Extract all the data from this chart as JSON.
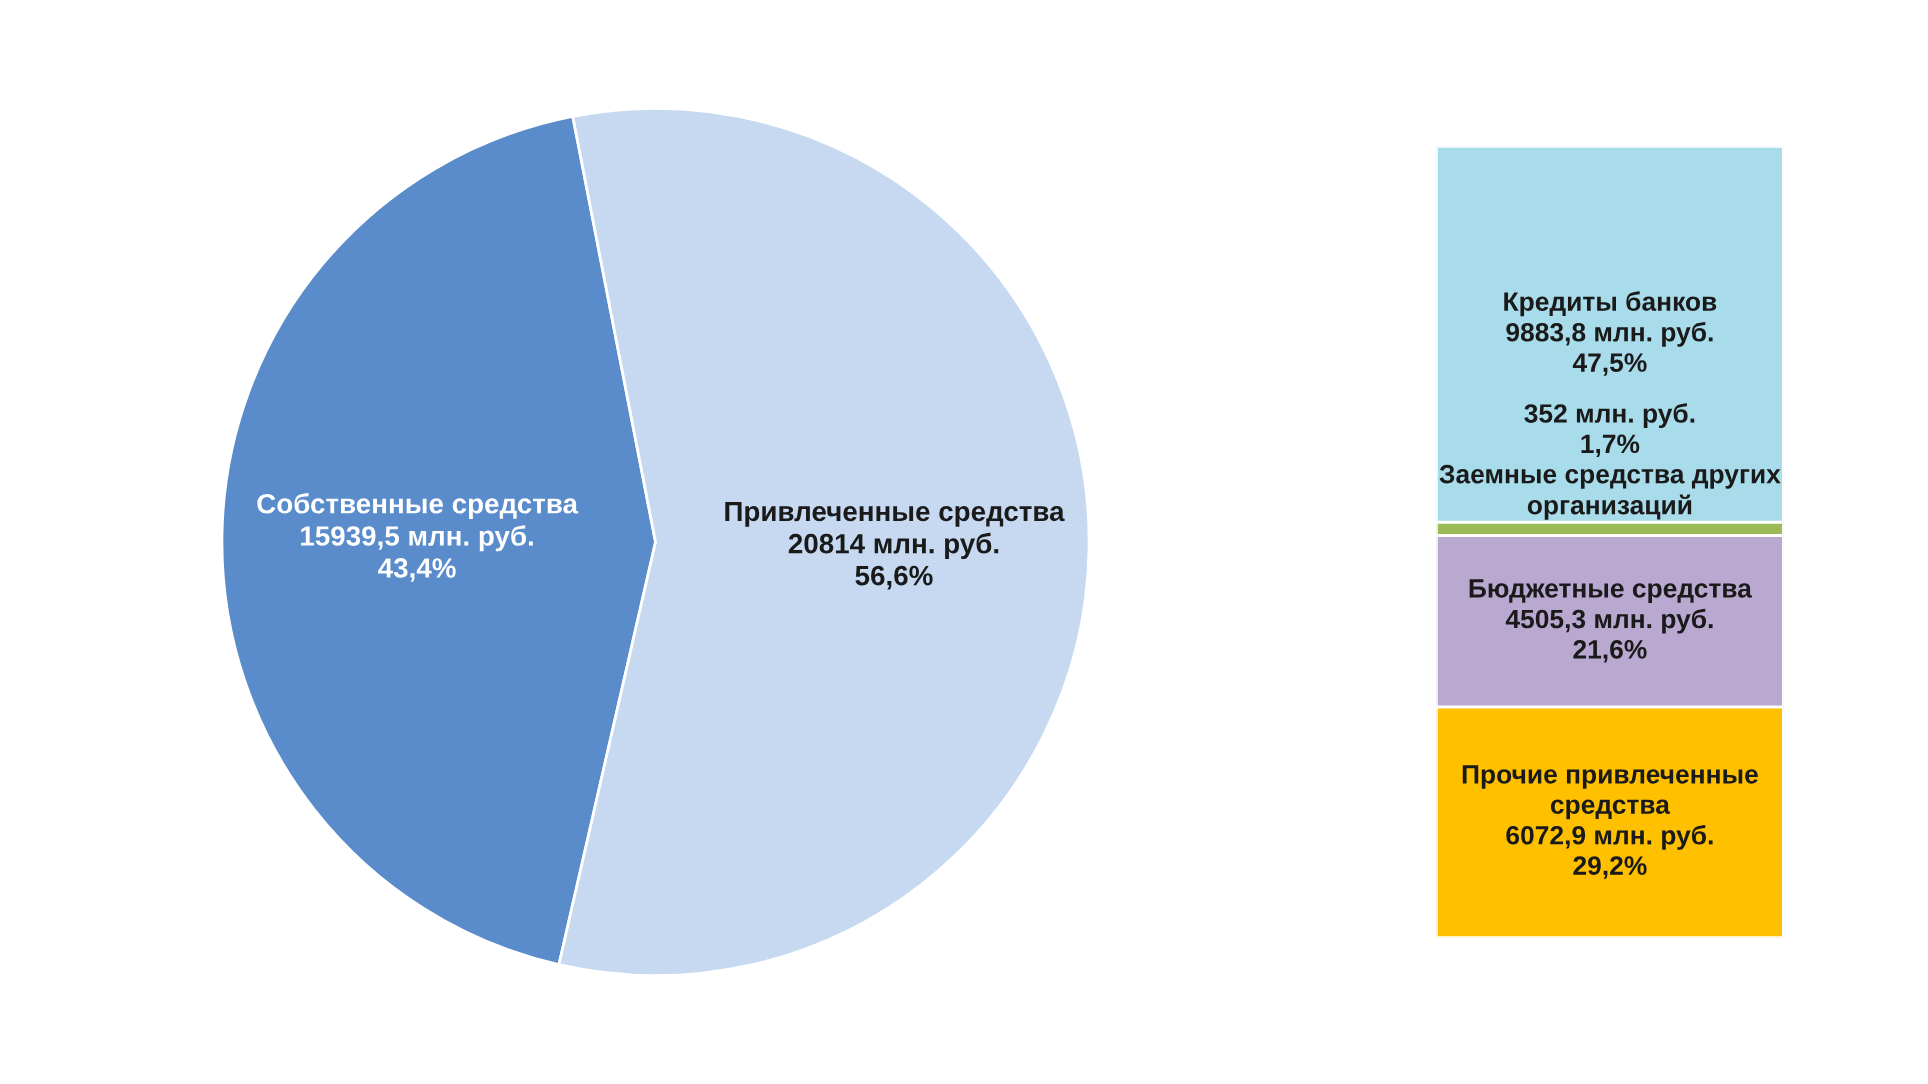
{
  "chart_data": [
    {
      "type": "pie",
      "categories": [
        "Собственные средства",
        "Привлеченные средства"
      ],
      "values": [
        15939.5,
        20814
      ],
      "colors": [
        "#5a8ccb",
        "#c6d9f1"
      ],
      "value_labels": [
        "15939,5 млн. руб.\n43,4%",
        "20814 млн. руб.\n56,6%"
      ],
      "legend": false
    },
    {
      "type": "bar",
      "stacked": true,
      "categories": [
        null
      ],
      "tick_labels": false,
      "legend": false,
      "series": [
        {
          "name": "Прочие привлеченные средства",
          "color": "#ffc000",
          "values": [
            6072.9
          ],
          "value_labels": [
            "6072,9 млн. руб.\n29,2%"
          ]
        },
        {
          "name": "Бюджетные средства",
          "color": "#b9a8d0",
          "values": [
            4505.3
          ],
          "value_labels": [
            "4505,3 млн. руб.\n21,6%"
          ]
        },
        {
          "name": "Заемные средства других организаций",
          "color": "#9bbb59",
          "values": [
            352
          ],
          "value_labels": [
            "352 млн. руб.\n1,7%"
          ]
        },
        {
          "name": "Кредиты банков",
          "color": "#a9dcea",
          "values": [
            9883.8
          ],
          "value_labels": [
            "9883,8 млн. руб.\n47,5%"
          ]
        }
      ]
    }
  ]
}
